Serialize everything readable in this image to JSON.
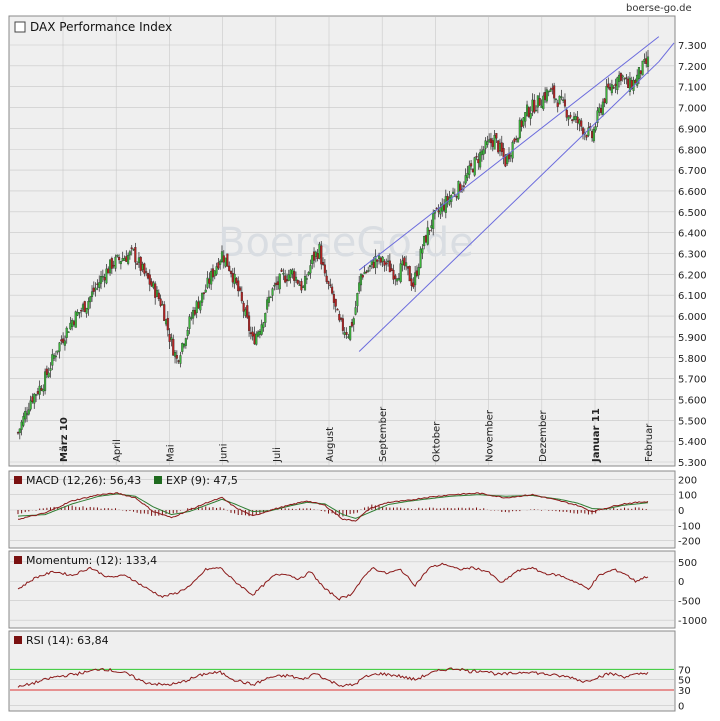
{
  "watermark": "boerse-go.de",
  "center_watermark": "BoerseGo.de",
  "chart_data": [
    {
      "type": "candlestick",
      "title": "DAX Performance Index",
      "y_ticks": [
        "7.300",
        "7.200",
        "7.100",
        "7.000",
        "6.900",
        "6.800",
        "6.700",
        "6.600",
        "6.500",
        "6.400",
        "6.300",
        "6.200",
        "6.100",
        "6.000",
        "5.900",
        "5.800",
        "5.700",
        "5.600",
        "5.500",
        "5.400",
        "5.300"
      ],
      "ylim": [
        5300,
        7340
      ],
      "x_labels": [
        "März 10",
        "April",
        "Mai",
        "Juni",
        "Juli",
        "August",
        "September",
        "Oktober",
        "November",
        "Dezember",
        "Januar 11",
        "Februar"
      ],
      "close_anchors": [
        [
          0,
          5440
        ],
        [
          7,
          5600
        ],
        [
          14,
          5680
        ],
        [
          22,
          5850
        ],
        [
          30,
          5980
        ],
        [
          38,
          6060
        ],
        [
          46,
          6180
        ],
        [
          52,
          6250
        ],
        [
          58,
          6280
        ],
        [
          64,
          6300
        ],
        [
          70,
          6200
        ],
        [
          76,
          6120
        ],
        [
          80,
          6050
        ],
        [
          84,
          5900
        ],
        [
          88,
          5790
        ],
        [
          93,
          5920
        ],
        [
          97,
          6020
        ],
        [
          103,
          6110
        ],
        [
          108,
          6210
        ],
        [
          113,
          6300
        ],
        [
          118,
          6220
        ],
        [
          122,
          6120
        ],
        [
          126,
          6000
        ],
        [
          130,
          5880
        ],
        [
          135,
          5970
        ],
        [
          140,
          6110
        ],
        [
          146,
          6180
        ],
        [
          152,
          6210
        ],
        [
          158,
          6130
        ],
        [
          163,
          6270
        ],
        [
          167,
          6320
        ],
        [
          170,
          6180
        ],
        [
          174,
          6100
        ],
        [
          178,
          5960
        ],
        [
          183,
          5920
        ],
        [
          186,
          5990
        ],
        [
          190,
          6200
        ],
        [
          194,
          6220
        ],
        [
          198,
          6270
        ],
        [
          204,
          6250
        ],
        [
          209,
          6200
        ],
        [
          214,
          6240
        ],
        [
          219,
          6150
        ],
        [
          224,
          6330
        ],
        [
          229,
          6450
        ],
        [
          234,
          6510
        ],
        [
          240,
          6580
        ],
        [
          246,
          6630
        ],
        [
          252,
          6720
        ],
        [
          258,
          6800
        ],
        [
          264,
          6850
        ],
        [
          270,
          6740
        ],
        [
          276,
          6870
        ],
        [
          282,
          6980
        ],
        [
          290,
          7040
        ],
        [
          294,
          7080
        ],
        [
          300,
          7030
        ],
        [
          306,
          6960
        ],
        [
          310,
          6930
        ],
        [
          314,
          6890
        ],
        [
          318,
          6860
        ],
        [
          322,
          6980
        ],
        [
          326,
          7070
        ],
        [
          330,
          7120
        ],
        [
          334,
          7160
        ],
        [
          338,
          7100
        ],
        [
          342,
          7130
        ],
        [
          345,
          7180
        ],
        [
          349,
          7220
        ]
      ],
      "channel": {
        "upper_start": [
          189,
          6220
        ],
        "upper_end": [
          355,
          7340
        ],
        "lower_start": [
          189,
          5830
        ],
        "lower_end": [
          355,
          7220
        ]
      }
    },
    {
      "type": "line",
      "indicator": "MACD (12,26): 56,43",
      "signal": "EXP (9): 47,5",
      "y_ticks": [
        "200",
        "100",
        "0",
        "-100",
        "-200"
      ],
      "ylim": [
        -235,
        235
      ],
      "macd_anchors": [
        [
          0,
          -60
        ],
        [
          15,
          -20
        ],
        [
          30,
          60
        ],
        [
          45,
          100
        ],
        [
          55,
          110
        ],
        [
          65,
          80
        ],
        [
          75,
          -10
        ],
        [
          85,
          -50
        ],
        [
          95,
          0
        ],
        [
          105,
          50
        ],
        [
          113,
          80
        ],
        [
          120,
          20
        ],
        [
          130,
          -40
        ],
        [
          140,
          0
        ],
        [
          150,
          30
        ],
        [
          160,
          60
        ],
        [
          170,
          30
        ],
        [
          180,
          -60
        ],
        [
          187,
          -70
        ],
        [
          195,
          10
        ],
        [
          205,
          50
        ],
        [
          215,
          60
        ],
        [
          225,
          80
        ],
        [
          240,
          100
        ],
        [
          255,
          110
        ],
        [
          270,
          80
        ],
        [
          285,
          100
        ],
        [
          300,
          60
        ],
        [
          310,
          30
        ],
        [
          318,
          -10
        ],
        [
          325,
          10
        ],
        [
          335,
          40
        ],
        [
          349,
          56
        ]
      ],
      "signal_anchors": [
        [
          0,
          -40
        ],
        [
          15,
          -30
        ],
        [
          30,
          40
        ],
        [
          45,
          90
        ],
        [
          55,
          105
        ],
        [
          65,
          90
        ],
        [
          75,
          20
        ],
        [
          85,
          -30
        ],
        [
          95,
          -10
        ],
        [
          105,
          35
        ],
        [
          113,
          70
        ],
        [
          120,
          40
        ],
        [
          130,
          -10
        ],
        [
          140,
          -5
        ],
        [
          150,
          25
        ],
        [
          160,
          50
        ],
        [
          170,
          40
        ],
        [
          180,
          -30
        ],
        [
          187,
          -55
        ],
        [
          195,
          -15
        ],
        [
          205,
          35
        ],
        [
          215,
          55
        ],
        [
          225,
          70
        ],
        [
          240,
          90
        ],
        [
          255,
          100
        ],
        [
          270,
          90
        ],
        [
          285,
          95
        ],
        [
          300,
          70
        ],
        [
          310,
          45
        ],
        [
          318,
          10
        ],
        [
          325,
          5
        ],
        [
          335,
          30
        ],
        [
          349,
          47.5
        ]
      ]
    },
    {
      "type": "line",
      "indicator": "Momentum: (12): 133,4",
      "y_ticks": [
        "500",
        "0",
        "-500",
        "-1000"
      ],
      "ylim": [
        -1150,
        700
      ],
      "anchors": [
        [
          0,
          -200
        ],
        [
          10,
          100
        ],
        [
          20,
          250
        ],
        [
          30,
          150
        ],
        [
          40,
          350
        ],
        [
          50,
          100
        ],
        [
          60,
          150
        ],
        [
          70,
          -150
        ],
        [
          80,
          -400
        ],
        [
          88,
          -300
        ],
        [
          96,
          -100
        ],
        [
          104,
          300
        ],
        [
          112,
          350
        ],
        [
          120,
          0
        ],
        [
          130,
          -350
        ],
        [
          136,
          -100
        ],
        [
          142,
          150
        ],
        [
          148,
          200
        ],
        [
          156,
          50
        ],
        [
          162,
          250
        ],
        [
          170,
          -200
        ],
        [
          178,
          -450
        ],
        [
          184,
          -350
        ],
        [
          190,
          0
        ],
        [
          196,
          350
        ],
        [
          204,
          200
        ],
        [
          212,
          300
        ],
        [
          220,
          -100
        ],
        [
          228,
          350
        ],
        [
          236,
          450
        ],
        [
          244,
          300
        ],
        [
          252,
          350
        ],
        [
          260,
          250
        ],
        [
          268,
          -50
        ],
        [
          276,
          250
        ],
        [
          284,
          350
        ],
        [
          292,
          200
        ],
        [
          300,
          150
        ],
        [
          308,
          0
        ],
        [
          316,
          -200
        ],
        [
          322,
          150
        ],
        [
          330,
          300
        ],
        [
          336,
          200
        ],
        [
          342,
          0
        ],
        [
          349,
          133
        ]
      ]
    },
    {
      "type": "line",
      "indicator": "RSI (14): 63,84",
      "y_ticks": [
        "70",
        "50",
        "30",
        "0"
      ],
      "ylim": [
        -5,
        100
      ],
      "levels": [
        70,
        30
      ],
      "anchors": [
        [
          0,
          35
        ],
        [
          10,
          45
        ],
        [
          20,
          55
        ],
        [
          30,
          60
        ],
        [
          40,
          66
        ],
        [
          46,
          72
        ],
        [
          52,
          68
        ],
        [
          60,
          62
        ],
        [
          70,
          45
        ],
        [
          80,
          40
        ],
        [
          88,
          42
        ],
        [
          96,
          52
        ],
        [
          104,
          62
        ],
        [
          112,
          64
        ],
        [
          120,
          50
        ],
        [
          130,
          40
        ],
        [
          140,
          55
        ],
        [
          150,
          58
        ],
        [
          158,
          50
        ],
        [
          165,
          63
        ],
        [
          172,
          48
        ],
        [
          180,
          38
        ],
        [
          186,
          40
        ],
        [
          192,
          55
        ],
        [
          200,
          62
        ],
        [
          210,
          58
        ],
        [
          220,
          50
        ],
        [
          228,
          62
        ],
        [
          236,
          70
        ],
        [
          244,
          72
        ],
        [
          250,
          66
        ],
        [
          258,
          68
        ],
        [
          266,
          60
        ],
        [
          274,
          62
        ],
        [
          282,
          66
        ],
        [
          290,
          62
        ],
        [
          298,
          58
        ],
        [
          306,
          55
        ],
        [
          314,
          46
        ],
        [
          320,
          54
        ],
        [
          328,
          62
        ],
        [
          336,
          56
        ],
        [
          343,
          60
        ],
        [
          349,
          64
        ]
      ]
    }
  ],
  "colors": {
    "up": "#3bb33b",
    "down": "#b22222",
    "macd": "#8b1a1a",
    "signal": "#2e7d32",
    "channel": "#6b6bdd",
    "grid": "#c8c8c8",
    "panel": "#efefef",
    "level70": "#33cc33",
    "level30": "#dd3333"
  }
}
